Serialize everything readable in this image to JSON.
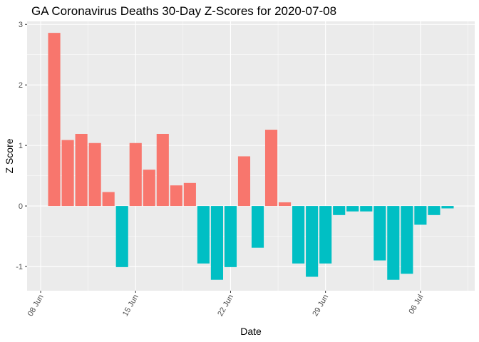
{
  "chart_data": {
    "type": "bar",
    "title": "GA Coronavirus Deaths 30-Day Z-Scores for 2020-07-08",
    "xlabel": "Date",
    "ylabel": "Z Score",
    "ylim": [
      -1.4,
      3.05
    ],
    "y_ticks": [
      -1,
      0,
      1,
      2,
      3
    ],
    "x_tick_labels": [
      "08 Jun",
      "15 Jun",
      "22 Jun",
      "29 Jun",
      "06 Jul"
    ],
    "x_tick_dates": [
      "2020-06-08",
      "2020-06-15",
      "2020-06-22",
      "2020-06-29",
      "2020-07-06"
    ],
    "x_range": [
      "2020-06-07",
      "2020-07-10"
    ],
    "colors": {
      "positive": "#F8766D",
      "negative": "#00BFC4",
      "panel": "#EBEBEB",
      "grid": "#FFFFFF"
    },
    "grid": true,
    "legend": "none",
    "points": [
      {
        "date": "2020-06-09",
        "value": 2.86
      },
      {
        "date": "2020-06-10",
        "value": 1.09
      },
      {
        "date": "2020-06-11",
        "value": 1.19
      },
      {
        "date": "2020-06-12",
        "value": 1.04
      },
      {
        "date": "2020-06-13",
        "value": 0.23
      },
      {
        "date": "2020-06-14",
        "value": -1.01
      },
      {
        "date": "2020-06-15",
        "value": 1.04
      },
      {
        "date": "2020-06-16",
        "value": 0.6
      },
      {
        "date": "2020-06-17",
        "value": 1.19
      },
      {
        "date": "2020-06-18",
        "value": 0.34
      },
      {
        "date": "2020-06-19",
        "value": 0.38
      },
      {
        "date": "2020-06-20",
        "value": -0.95
      },
      {
        "date": "2020-06-21",
        "value": -1.22
      },
      {
        "date": "2020-06-22",
        "value": -1.01
      },
      {
        "date": "2020-06-23",
        "value": 0.82
      },
      {
        "date": "2020-06-24",
        "value": -0.69
      },
      {
        "date": "2020-06-25",
        "value": 1.26
      },
      {
        "date": "2020-06-26",
        "value": 0.06
      },
      {
        "date": "2020-06-27",
        "value": -0.95
      },
      {
        "date": "2020-06-28",
        "value": -1.17
      },
      {
        "date": "2020-06-29",
        "value": -0.95
      },
      {
        "date": "2020-06-30",
        "value": -0.15
      },
      {
        "date": "2020-07-01",
        "value": -0.09
      },
      {
        "date": "2020-07-02",
        "value": -0.09
      },
      {
        "date": "2020-07-03",
        "value": -0.9
      },
      {
        "date": "2020-07-04",
        "value": -1.22
      },
      {
        "date": "2020-07-05",
        "value": -1.12
      },
      {
        "date": "2020-07-06",
        "value": -0.31
      },
      {
        "date": "2020-07-07",
        "value": -0.15
      },
      {
        "date": "2020-07-08",
        "value": -0.04
      }
    ]
  }
}
